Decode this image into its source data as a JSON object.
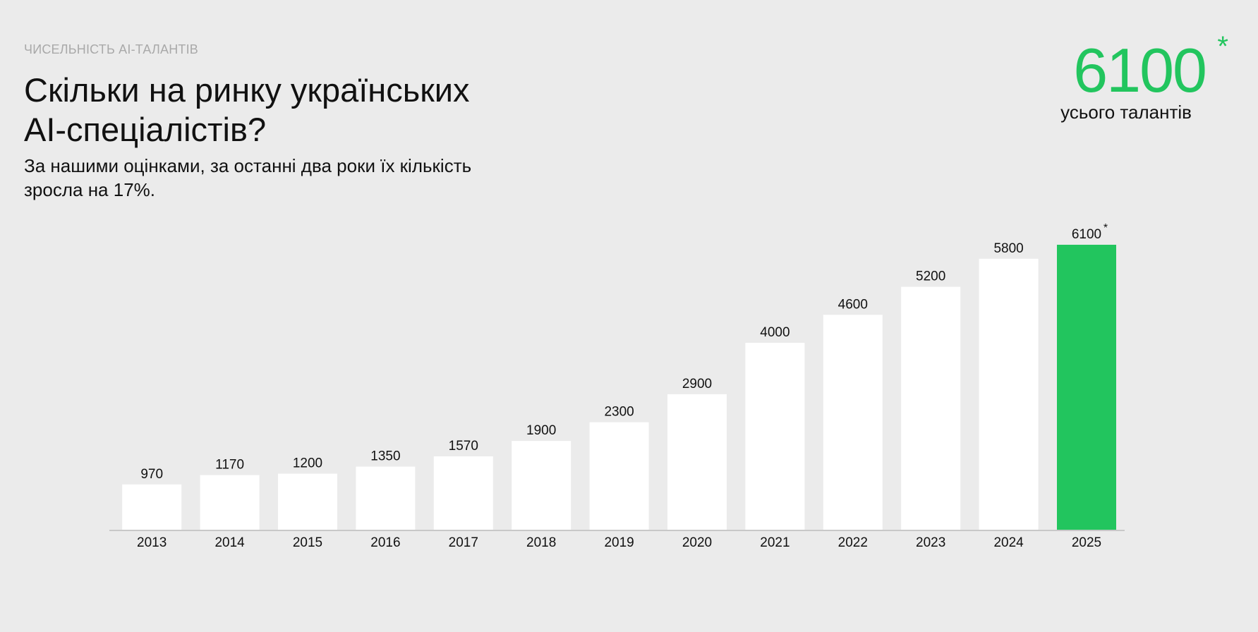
{
  "header": {
    "eyebrow": "ЧИСЕЛЬНІСТЬ AI-ТАЛАНТІВ",
    "title_line1": "Скільки на ринку українських",
    "title_line2": "AI-спеціалістів?",
    "subtitle_line1": "За нашими оцінками, за останні два роки їх кількість",
    "subtitle_line2": "зросла на 17%."
  },
  "kpi": {
    "value": "6100",
    "asterisk": "*",
    "label": "усього талантів"
  },
  "colors": {
    "background": "#ebebeb",
    "bar": "#ffffff",
    "highlight": "#22c55e",
    "axis": "#c8c8c8",
    "text": "#111111",
    "muted": "#a9a9a9"
  },
  "chart_data": {
    "type": "bar",
    "categories": [
      "2013",
      "2014",
      "2015",
      "2016",
      "2017",
      "2018",
      "2019",
      "2020",
      "2021",
      "2022",
      "2023",
      "2024",
      "2025"
    ],
    "values": [
      970,
      1170,
      1200,
      1350,
      1570,
      1900,
      2300,
      2900,
      4000,
      4600,
      5200,
      5800,
      6100
    ],
    "value_labels": [
      "970",
      "1170",
      "1200",
      "1350",
      "1570",
      "1900",
      "2300",
      "2900",
      "4000",
      "4600",
      "5200",
      "5800",
      "6100"
    ],
    "highlight_index": 12,
    "highlight_marker": "*",
    "title": "",
    "xlabel": "",
    "ylabel": "",
    "ylim": [
      0,
      6100
    ],
    "grid": false,
    "legend": "none"
  }
}
